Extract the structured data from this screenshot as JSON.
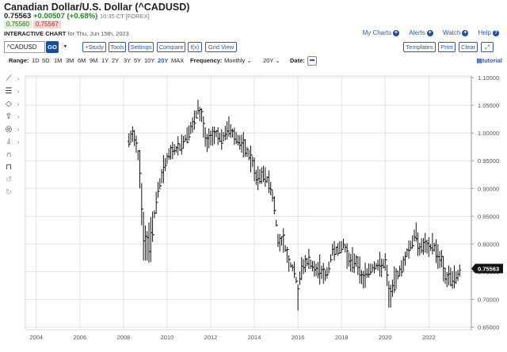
{
  "header": {
    "title": "Canadian Dollar/U.S. Dollar (^CADUSD)",
    "last": "0.75563",
    "change": "+0.00507 (+0.68%)",
    "time": "10:35 CT [FOREX]",
    "bid": "0.75560",
    "ask": "0.75567",
    "chart_label": "INTERACTIVE CHART",
    "chart_date": "for Thu, Jun 15th, 2023"
  },
  "links": {
    "my_charts": "My Charts",
    "alerts": "Alerts",
    "watch": "Watch",
    "help": "Help"
  },
  "toolbar": {
    "symbol": "^CADUSD",
    "go": "GO",
    "study": "+Study",
    "tools": "Tools",
    "settings": "Settings",
    "compare": "Compare",
    "fx": "f(x)",
    "grid_view": "Grid View",
    "templates": "Templates",
    "print": "Print",
    "clear": "Clear"
  },
  "range": {
    "label": "Range:",
    "options": [
      "1D",
      "5D",
      "1M",
      "3M",
      "6M",
      "9M",
      "1Y",
      "2Y",
      "3Y",
      "5Y",
      "10Y",
      "20Y",
      "MAX"
    ],
    "active": "20Y",
    "frequency_label": "Frequency:",
    "frequency": "Monthly",
    "period": "20Y",
    "date_label": "Date:",
    "tutorial": "tutorial"
  },
  "colors": {
    "accent": "#2a5db0",
    "go": "#1a4fa0",
    "up": "#1e8a1e",
    "price_tag": "#111111"
  },
  "sidebar_icons": [
    "draw-line-icon",
    "fibonacci-icon",
    "shape-icon",
    "arrow-icon",
    "target-icon",
    "measure-icon",
    "magnet-icon",
    "lock-icon",
    "undo-icon",
    "redo-icon"
  ],
  "chart_data": {
    "type": "ohlc",
    "x_ticks": [
      "2004",
      "2006",
      "2008",
      "2010",
      "2012",
      "2014",
      "2016",
      "2018",
      "2020",
      "2022"
    ],
    "y_ticks": [
      "0.65000",
      "0.70000",
      "0.75000",
      "0.80000",
      "0.85000",
      "0.90000",
      "0.95000",
      "1.00000",
      "1.05000",
      "1.10000"
    ],
    "xlim": [
      2003.5,
      2023.95
    ],
    "ylim": [
      0.645,
      1.103
    ],
    "last_price": "0.75563",
    "last_value": 0.75563,
    "grid": true,
    "anchors": [
      [
        2008.25,
        0.985
      ],
      [
        2008.45,
        1.0
      ],
      [
        2008.6,
        0.98
      ],
      [
        2008.75,
        0.94
      ],
      [
        2008.9,
        0.82
      ],
      [
        2009.05,
        0.79
      ],
      [
        2009.2,
        0.8
      ],
      [
        2009.4,
        0.85
      ],
      [
        2009.6,
        0.9
      ],
      [
        2009.8,
        0.93
      ],
      [
        2010.0,
        0.955
      ],
      [
        2010.3,
        0.97
      ],
      [
        2010.6,
        0.975
      ],
      [
        2010.9,
        0.995
      ],
      [
        2011.2,
        1.015
      ],
      [
        2011.4,
        1.04
      ],
      [
        2011.6,
        1.03
      ],
      [
        2011.8,
        0.98
      ],
      [
        2012.0,
        0.995
      ],
      [
        2012.3,
        1.0
      ],
      [
        2012.5,
        0.985
      ],
      [
        2012.8,
        1.01
      ],
      [
        2013.0,
        1.0
      ],
      [
        2013.3,
        0.985
      ],
      [
        2013.6,
        0.97
      ],
      [
        2013.9,
        0.95
      ],
      [
        2014.1,
        0.915
      ],
      [
        2014.4,
        0.925
      ],
      [
        2014.7,
        0.91
      ],
      [
        2014.9,
        0.875
      ],
      [
        2015.1,
        0.8
      ],
      [
        2015.3,
        0.81
      ],
      [
        2015.6,
        0.765
      ],
      [
        2015.8,
        0.755
      ],
      [
        2016.0,
        0.72
      ],
      [
        2016.2,
        0.76
      ],
      [
        2016.5,
        0.77
      ],
      [
        2016.8,
        0.75
      ],
      [
        2017.0,
        0.755
      ],
      [
        2017.3,
        0.74
      ],
      [
        2017.6,
        0.79
      ],
      [
        2017.9,
        0.79
      ],
      [
        2018.1,
        0.8
      ],
      [
        2018.4,
        0.765
      ],
      [
        2018.7,
        0.77
      ],
      [
        2018.95,
        0.735
      ],
      [
        2019.2,
        0.75
      ],
      [
        2019.5,
        0.76
      ],
      [
        2019.8,
        0.76
      ],
      [
        2020.0,
        0.765
      ],
      [
        2020.2,
        0.705
      ],
      [
        2020.5,
        0.74
      ],
      [
        2020.8,
        0.76
      ],
      [
        2021.0,
        0.785
      ],
      [
        2021.2,
        0.8
      ],
      [
        2021.4,
        0.82
      ],
      [
        2021.6,
        0.79
      ],
      [
        2021.8,
        0.8
      ],
      [
        2022.0,
        0.79
      ],
      [
        2022.2,
        0.8
      ],
      [
        2022.4,
        0.78
      ],
      [
        2022.6,
        0.77
      ],
      [
        2022.8,
        0.735
      ],
      [
        2023.0,
        0.74
      ],
      [
        2023.2,
        0.735
      ],
      [
        2023.45,
        0.755
      ]
    ]
  }
}
